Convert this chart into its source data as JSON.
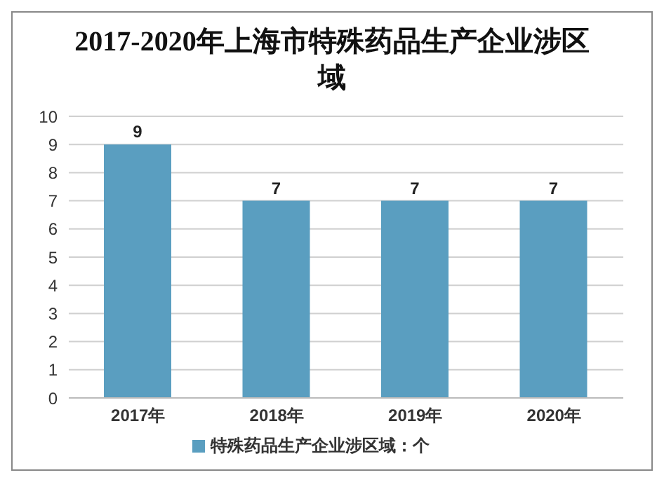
{
  "chart_data": {
    "type": "bar",
    "title": "2017-2020年上海市特殊药品生产企业涉区域",
    "categories": [
      "2017年",
      "2018年",
      "2019年",
      "2020年"
    ],
    "series": [
      {
        "name": "特殊药品生产企业涉区域：个",
        "color": "#5a9ec0",
        "values": [
          9,
          7,
          7,
          7
        ]
      }
    ],
    "ylim": [
      0,
      10
    ],
    "yticks": [
      0,
      1,
      2,
      3,
      4,
      5,
      6,
      7,
      8,
      9,
      10
    ],
    "grid": "y",
    "legend": "bottom",
    "data_labels": true
  }
}
